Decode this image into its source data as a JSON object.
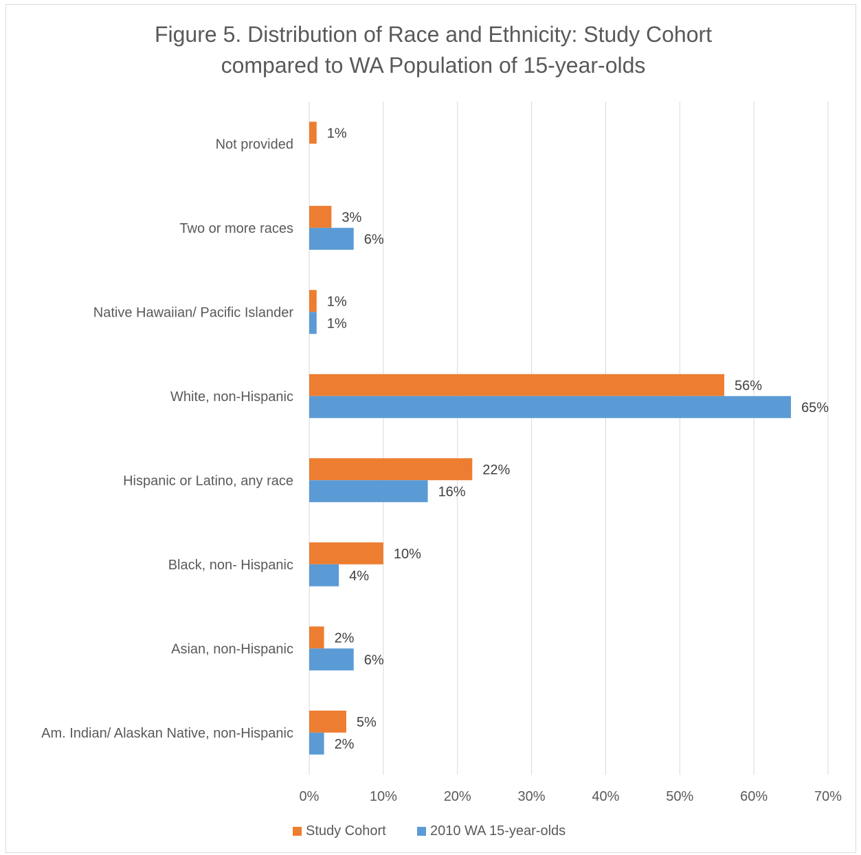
{
  "chart_data": {
    "type": "bar",
    "orientation": "horizontal",
    "title_lines": [
      "Figure 5. Distribution of Race and Ethnicity: Study Cohort",
      "compared to WA Population of 15-year-olds"
    ],
    "categories": [
      "Not provided",
      "Two or more races",
      "Native Hawaiian/ Pacific Islander",
      "White, non-Hispanic",
      "Hispanic or Latino, any race",
      "Black, non- Hispanic",
      "Asian, non-Hispanic",
      "Am. Indian/ Alaskan Native, non-Hispanic"
    ],
    "series": [
      {
        "name": "Study Cohort",
        "color": "#ed7d31",
        "values": [
          1,
          3,
          1,
          56,
          22,
          10,
          2,
          5
        ],
        "labels": [
          "1%",
          "3%",
          "1%",
          "56%",
          "22%",
          "10%",
          "2%",
          "5%"
        ]
      },
      {
        "name": "2010 WA 15-year-olds",
        "color": "#5b9bd5",
        "values": [
          null,
          6,
          1,
          65,
          16,
          4,
          6,
          2
        ],
        "labels": [
          null,
          "6%",
          "1%",
          "65%",
          "16%",
          "4%",
          "6%",
          "2%"
        ]
      }
    ],
    "x_ticks": [
      "0%",
      "10%",
      "20%",
      "30%",
      "40%",
      "50%",
      "60%",
      "70%"
    ],
    "xlim": [
      0,
      70
    ],
    "gridlines": true,
    "legend_position": "bottom",
    "gridline_color": "#d9d9d9"
  }
}
